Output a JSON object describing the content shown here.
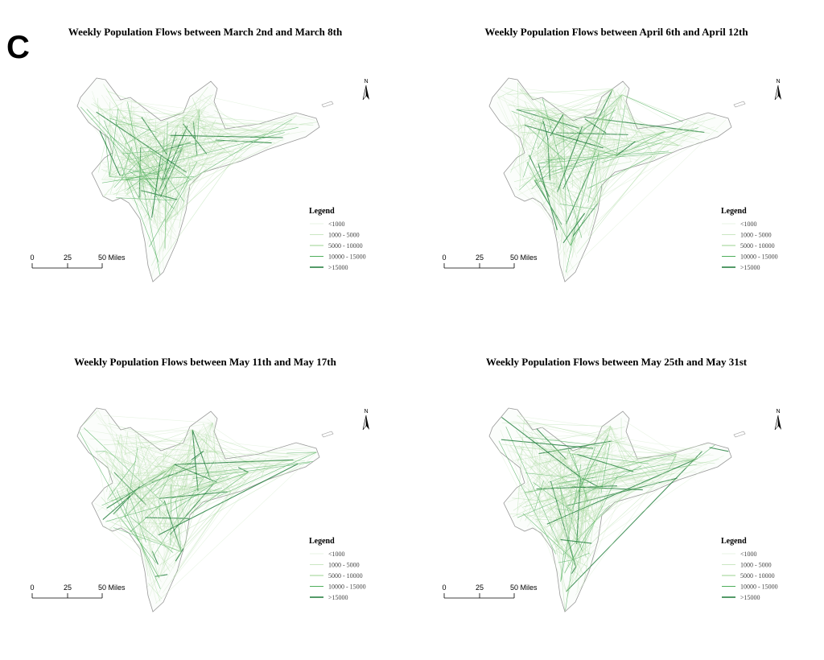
{
  "panel_label": "C",
  "panels": [
    {
      "title": "Weekly Population Flows between March 2nd and March 8th",
      "north": "N",
      "scale": [
        "0",
        "25",
        "50 Miles"
      ],
      "legend": {
        "title": "Legend",
        "items": [
          "<1000",
          "1000 - 5000",
          "5000 - 10000",
          "10000 - 15000",
          ">15000"
        ]
      }
    },
    {
      "title": "Weekly Population Flows between April 6th and April 12th",
      "north": "N",
      "scale": [
        "0",
        "25",
        "50 Miles"
      ],
      "legend": {
        "title": "Legend",
        "items": [
          "<1000",
          "1000 - 5000",
          "5000 - 10000",
          "10000 - 15000",
          ">15000"
        ]
      }
    },
    {
      "title": "Weekly Population Flows between May 11th and May 17th",
      "north": "N",
      "scale": [
        "0",
        "25",
        "50 Miles"
      ],
      "legend": {
        "title": "Legend",
        "items": [
          "<1000",
          "1000 - 5000",
          "5000 - 10000",
          "10000 - 15000",
          ">15000"
        ]
      }
    },
    {
      "title": "Weekly Population Flows between May 25th and May 31st",
      "north": "N",
      "scale": [
        "0",
        "25",
        "50 Miles"
      ],
      "legend": {
        "title": "Legend",
        "items": [
          "<1000",
          "1000 - 5000",
          "5000 - 10000",
          "10000 - 15000",
          ">15000"
        ]
      }
    }
  ]
}
